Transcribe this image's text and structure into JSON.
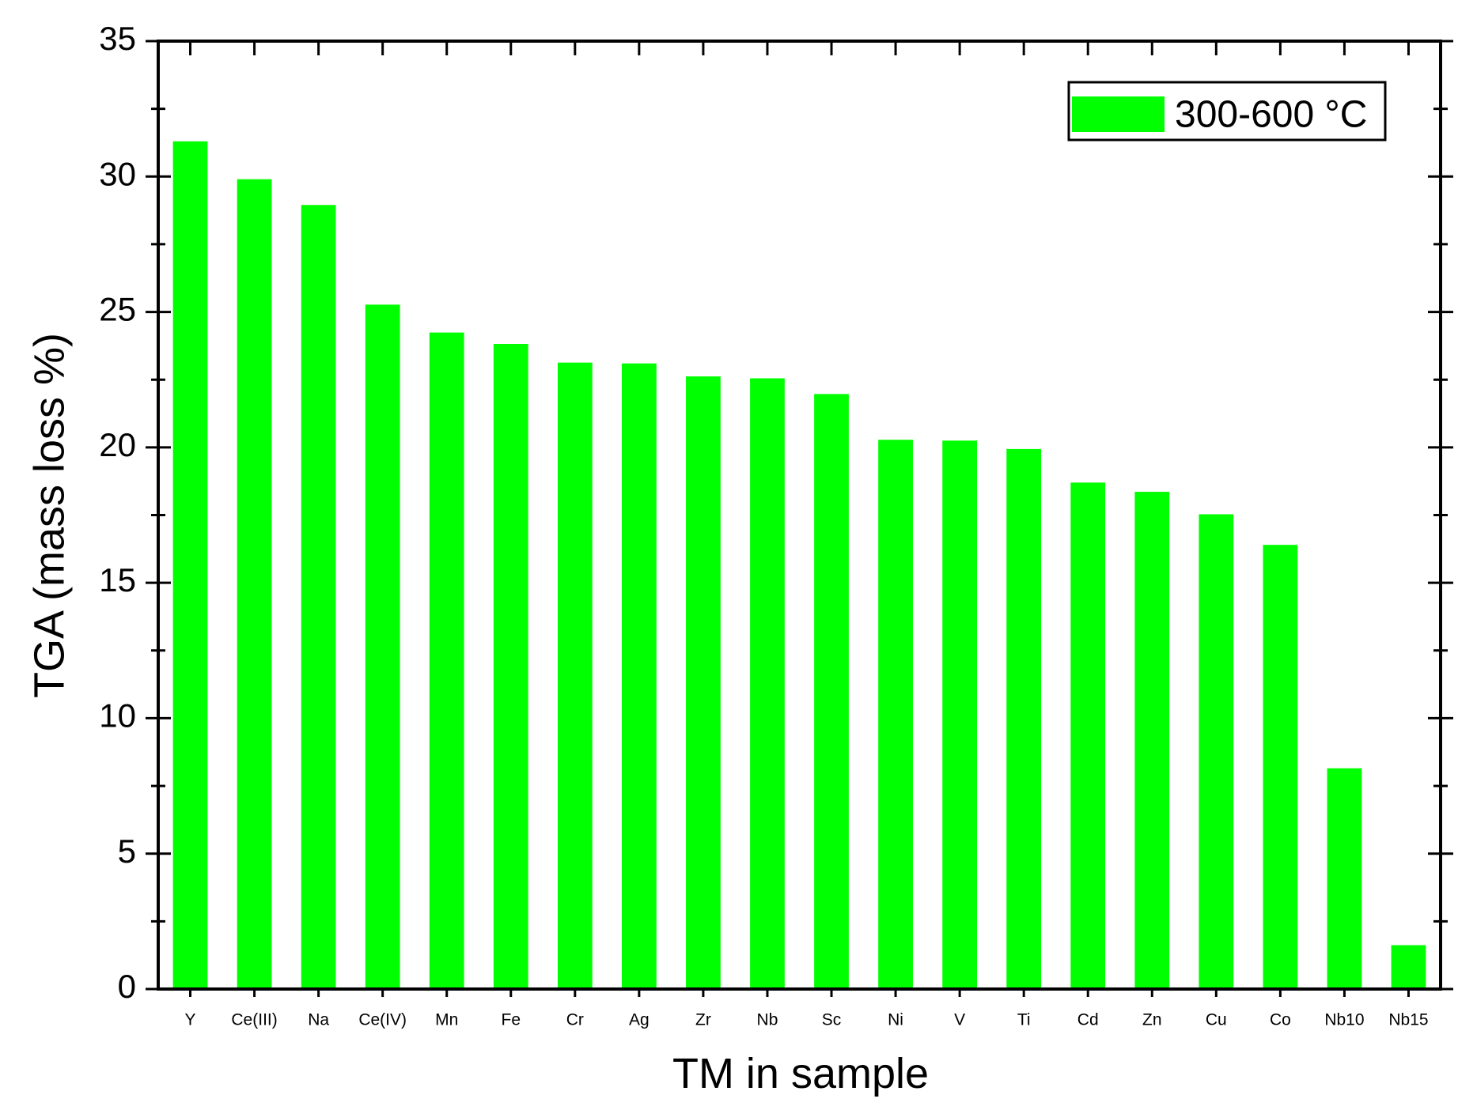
{
  "chart_data": {
    "type": "bar",
    "x_label": "TM in sample",
    "y_label": "TGA (mass loss %)",
    "categories": [
      "Y",
      "Ce(III)",
      "Na",
      "Ce(IV)",
      "Mn",
      "Fe",
      "Cr",
      "Ag",
      "Zr",
      "Nb",
      "Sc",
      "Ni",
      "V",
      "Ti",
      "Cd",
      "Zn",
      "Cu",
      "Co",
      "Nb10",
      "Nb15"
    ],
    "series": [
      {
        "name": "300-600 °C",
        "color": "#00ff00",
        "values": [
          31.3,
          29.9,
          28.95,
          25.27,
          24.24,
          23.82,
          23.13,
          23.1,
          22.62,
          22.55,
          21.97,
          20.28,
          20.25,
          19.94,
          18.7,
          18.36,
          17.53,
          16.4,
          8.15,
          1.62
        ]
      }
    ],
    "ylim": [
      0,
      35
    ],
    "yticks": [
      0,
      5,
      10,
      15,
      20,
      25,
      30,
      35
    ],
    "legend": "upper right"
  }
}
